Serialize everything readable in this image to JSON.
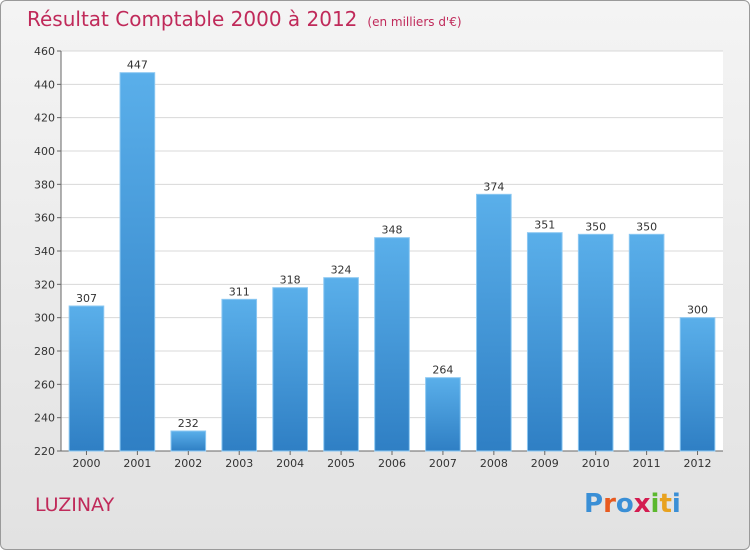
{
  "chart_data": {
    "type": "bar",
    "title": "Résultat Comptable 2000 à 2012",
    "subtitle": "(en milliers d'€)",
    "categories": [
      "2000",
      "2001",
      "2002",
      "2003",
      "2004",
      "2005",
      "2006",
      "2007",
      "2008",
      "2009",
      "2010",
      "2011",
      "2012"
    ],
    "values": [
      307,
      447,
      232,
      311,
      318,
      324,
      348,
      264,
      374,
      351,
      350,
      350,
      300
    ],
    "ylim": [
      220,
      460
    ],
    "yticks": [
      220,
      240,
      260,
      280,
      300,
      320,
      340,
      360,
      380,
      400,
      420,
      440,
      460
    ],
    "xlabel": "",
    "ylabel": "",
    "grid": true,
    "bar_color": "#4a9fe0"
  },
  "commune": "LUZINAY",
  "logo": {
    "letters": [
      "P",
      "r",
      "o",
      "x",
      "i",
      "t",
      "i"
    ],
    "colors": [
      "#3a8fd6",
      "#e85a1f",
      "#3a8fd6",
      "#d41c50",
      "#5cb82e",
      "#e8a21f",
      "#3a8fd6"
    ]
  }
}
